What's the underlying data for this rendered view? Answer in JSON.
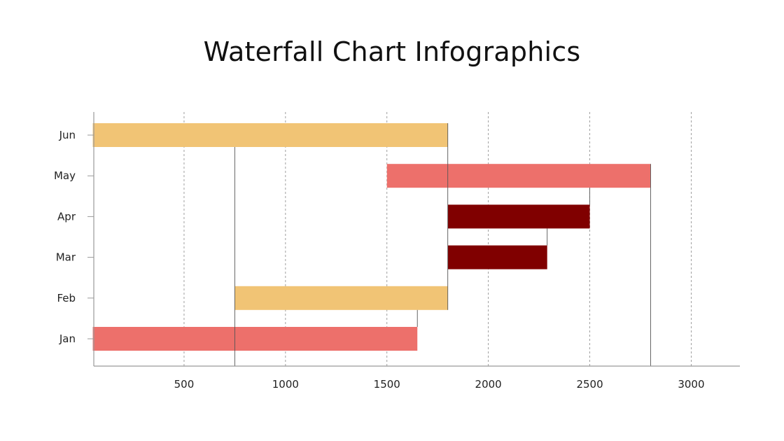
{
  "chart_data": {
    "type": "bar",
    "subtype": "waterfall-horizontal",
    "title": "Waterfall Chart Infographics",
    "xlabel": "",
    "ylabel": "",
    "categories": [
      "Jan",
      "Feb",
      "Mar",
      "Apr",
      "May",
      "Jun"
    ],
    "bars": [
      {
        "category": "Jan",
        "start": 50,
        "end": 1650,
        "color": "#ED706B"
      },
      {
        "category": "Feb",
        "start": 750,
        "end": 1800,
        "color": "#F1C475"
      },
      {
        "category": "Mar",
        "start": 1800,
        "end": 2290,
        "color": "#800000"
      },
      {
        "category": "Apr",
        "start": 1800,
        "end": 2500,
        "color": "#800000"
      },
      {
        "category": "May",
        "start": 1500,
        "end": 2800,
        "color": "#ED706B"
      },
      {
        "category": "Jun",
        "start": 50,
        "end": 1800,
        "color": "#F1C475"
      }
    ],
    "xticks": [
      500,
      1000,
      1500,
      2000,
      2500,
      3000
    ],
    "xtick_labels": [
      "500",
      "1000",
      "1500",
      "2000",
      "2500",
      "3000"
    ],
    "xlim": [
      55,
      3240
    ],
    "grid": "vertical dashed",
    "legend": "none"
  }
}
